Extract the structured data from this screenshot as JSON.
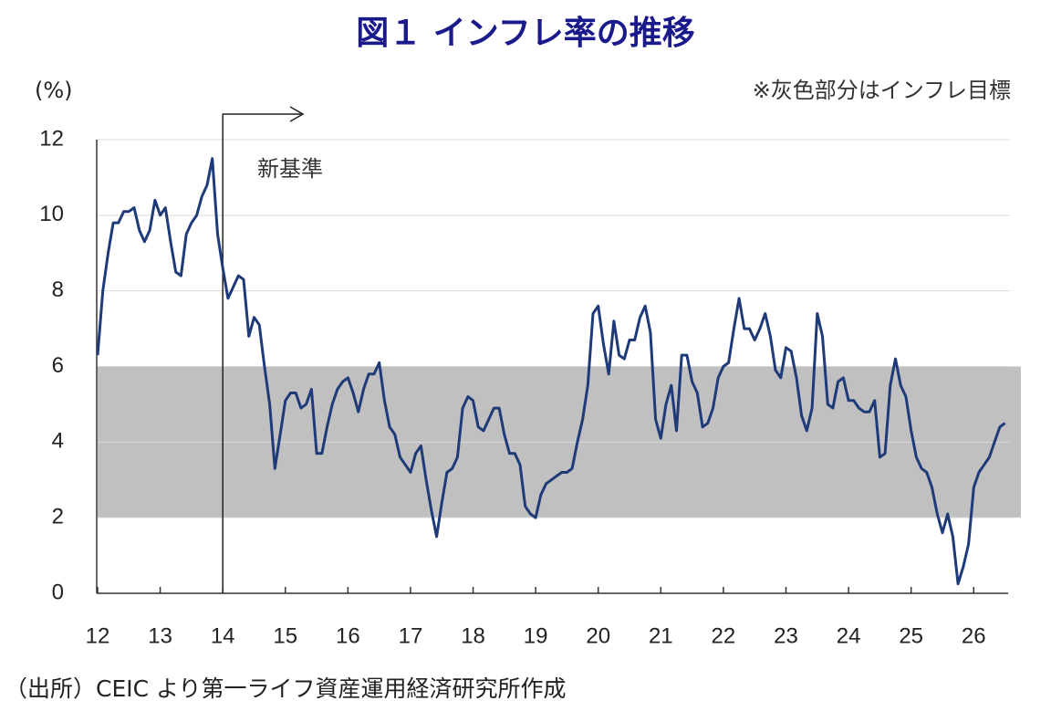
{
  "chart_data": {
    "type": "line",
    "title": "図１ インフレ率の推移",
    "y_unit_label": "(%)",
    "band_note": "※灰色部分はインフレ目標",
    "marker_label": "新基準",
    "marker_x": 14,
    "source": "（出所）CEIC より第一ライフ資産運用経済研究所作成",
    "target_band": [
      2,
      6
    ],
    "band_color": "#c0c0c0",
    "xlim": [
      12,
      26.55
    ],
    "xticks": [
      12,
      13,
      14,
      15,
      16,
      17,
      18,
      19,
      20,
      21,
      22,
      23,
      24,
      25,
      26
    ],
    "ylim": [
      0,
      12
    ],
    "yticks": [
      0,
      2,
      4,
      6,
      8,
      10,
      12
    ],
    "grid": true,
    "x": [
      12,
      12.083,
      12.167,
      12.25,
      12.333,
      12.417,
      12.5,
      12.583,
      12.667,
      12.75,
      12.833,
      12.917,
      13,
      13.083,
      13.167,
      13.25,
      13.333,
      13.417,
      13.5,
      13.583,
      13.667,
      13.75,
      13.833,
      13.917,
      14,
      14.083,
      14.167,
      14.25,
      14.333,
      14.417,
      14.5,
      14.583,
      14.667,
      14.75,
      14.833,
      14.917,
      15,
      15.083,
      15.167,
      15.25,
      15.333,
      15.417,
      15.5,
      15.583,
      15.667,
      15.75,
      15.833,
      15.917,
      16,
      16.083,
      16.167,
      16.25,
      16.333,
      16.417,
      16.5,
      16.583,
      16.667,
      16.75,
      16.833,
      16.917,
      17,
      17.083,
      17.167,
      17.25,
      17.333,
      17.417,
      17.5,
      17.583,
      17.667,
      17.75,
      17.833,
      17.917,
      18,
      18.083,
      18.167,
      18.25,
      18.333,
      18.417,
      18.5,
      18.583,
      18.667,
      18.75,
      18.833,
      18.917,
      19,
      19.083,
      19.167,
      19.25,
      19.333,
      19.417,
      19.5,
      19.583,
      19.667,
      19.75,
      19.833,
      19.917,
      20,
      20.083,
      20.167,
      20.25,
      20.333,
      20.417,
      20.5,
      20.583,
      20.667,
      20.75,
      20.833,
      20.917,
      21,
      21.083,
      21.167,
      21.25,
      21.333,
      21.417,
      21.5,
      21.583,
      21.667,
      21.75,
      21.833,
      21.917,
      22,
      22.083,
      22.167,
      22.25,
      22.333,
      22.417,
      22.5,
      22.583,
      22.667,
      22.75,
      22.833,
      22.917,
      23,
      23.083,
      23.167,
      23.25,
      23.333,
      23.417,
      23.5,
      23.583,
      23.667,
      23.75,
      23.833,
      23.917,
      24,
      24.083,
      24.167,
      24.25,
      24.333,
      24.417,
      24.5,
      24.583,
      24.667,
      24.75,
      24.833,
      24.917,
      25,
      25.083,
      25.167,
      25.25,
      25.333,
      25.417,
      25.5,
      25.583,
      25.667,
      25.75,
      25.833,
      25.917,
      26,
      26.083,
      26.167,
      26.25,
      26.333,
      26.417,
      26.5
    ],
    "series": [
      {
        "color": "#1f3a78",
        "values": [
          6.3,
          8.0,
          9.0,
          9.8,
          9.8,
          10.1,
          10.1,
          10.2,
          9.6,
          9.3,
          9.6,
          10.4,
          10.0,
          10.2,
          9.3,
          8.5,
          8.4,
          9.5,
          9.8,
          10.0,
          10.5,
          10.8,
          11.5,
          9.5,
          8.6,
          7.8,
          8.1,
          8.4,
          8.3,
          6.8,
          7.3,
          7.1,
          6.0,
          5.0,
          3.3,
          4.2,
          5.1,
          5.3,
          5.3,
          4.9,
          5.0,
          5.4,
          3.7,
          3.7,
          4.4,
          5.0,
          5.4,
          5.6,
          5.7,
          5.3,
          4.8,
          5.4,
          5.8,
          5.8,
          6.1,
          5.1,
          4.4,
          4.2,
          3.6,
          3.4,
          3.2,
          3.7,
          3.9,
          3.0,
          2.2,
          1.5,
          2.4,
          3.2,
          3.3,
          3.6,
          4.9,
          5.2,
          5.1,
          4.4,
          4.3,
          4.6,
          4.9,
          4.9,
          4.2,
          3.7,
          3.7,
          3.4,
          2.3,
          2.1,
          2.0,
          2.6,
          2.9,
          3.0,
          3.1,
          3.2,
          3.2,
          3.3,
          4.0,
          4.6,
          5.5,
          7.4,
          7.6,
          6.6,
          5.8,
          7.2,
          6.3,
          6.2,
          6.7,
          6.7,
          7.3,
          7.6,
          6.9,
          4.6,
          4.1,
          5.0,
          5.5,
          4.3,
          6.3,
          6.3,
          5.6,
          5.3,
          4.4,
          4.5,
          4.9,
          5.7,
          6.0,
          6.1,
          7.0,
          7.8,
          7.0,
          7.0,
          6.7,
          7.0,
          7.4,
          6.8,
          5.9,
          5.7,
          6.5,
          6.4,
          5.7,
          4.7,
          4.3,
          4.9,
          7.4,
          6.8,
          5.0,
          4.9,
          5.6,
          5.7,
          5.1,
          5.1,
          4.9,
          4.8,
          4.8,
          5.1,
          3.6,
          3.7,
          5.5,
          6.2,
          5.5,
          5.2,
          4.3,
          3.6,
          3.3,
          3.2,
          2.8,
          2.1,
          1.6,
          2.1,
          1.5,
          0.25,
          0.7,
          1.3,
          2.8,
          3.2,
          3.4,
          3.6,
          4.0,
          4.4,
          4.5
        ]
      }
    ]
  }
}
